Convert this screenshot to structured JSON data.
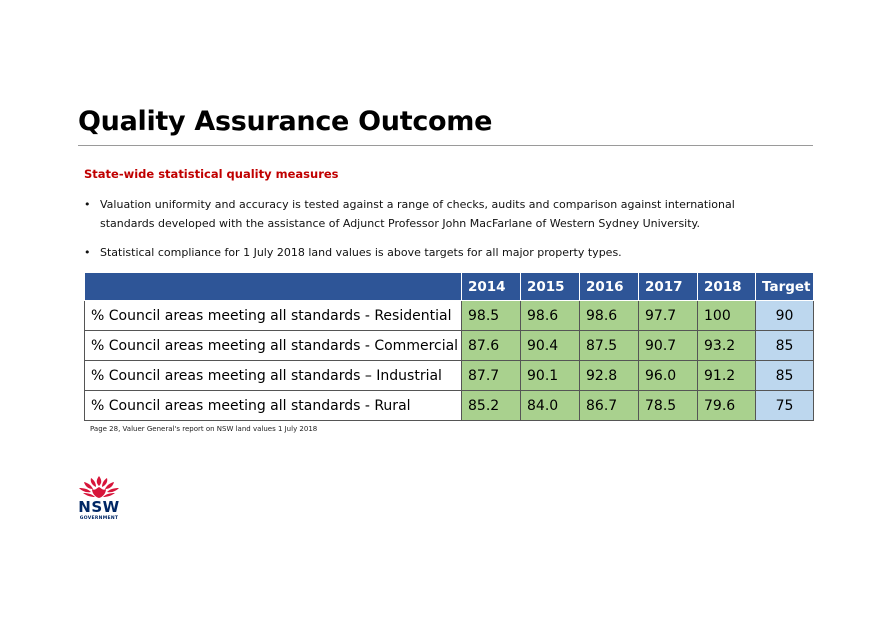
{
  "title": "Quality Assurance Outcome",
  "subtitle": "State-wide statistical quality measures",
  "bullets": [
    "Valuation uniformity and accuracy is tested against a range of checks, audits and comparison against international standards developed with the assistance of Adjunct Professor John MacFarlane of Western Sydney University.",
    "Statistical compliance for 1 July 2018 land values is above targets for all major property types."
  ],
  "table": {
    "headers": [
      "",
      "2014",
      "2015",
      "2016",
      "2017",
      "2018",
      "Target"
    ],
    "rows": [
      {
        "label": "% Council areas meeting all standards - Residential",
        "values": [
          "98.5",
          "98.6",
          "98.6",
          "97.7",
          "100"
        ],
        "target": "90"
      },
      {
        "label": "% Council areas meeting all standards -  Commercial",
        "values": [
          "87.6",
          "90.4",
          "87.5",
          "90.7",
          "93.2"
        ],
        "target": "85"
      },
      {
        "label": "% Council areas meeting all standards – Industrial",
        "values": [
          "87.7",
          "90.1",
          "92.8",
          "96.0",
          "91.2"
        ],
        "target": "85"
      },
      {
        "label": "% Council areas meeting all standards - Rural",
        "values": [
          "85.2",
          "84.0",
          "86.7",
          "78.5",
          "79.6"
        ],
        "target": "75"
      }
    ]
  },
  "footnote": "Page 28, Valuer General's report on NSW land values 1 July 2018",
  "logo": {
    "name": "NSW",
    "sub": "GOVERNMENT",
    "icon": "waratah-icon"
  },
  "colors": {
    "header": "#2e5597",
    "value_cell": "#a9d18e",
    "target_cell": "#bdd7ee",
    "subtitle": "#c00000",
    "logo_red": "#d7153a",
    "logo_navy": "#002664"
  }
}
